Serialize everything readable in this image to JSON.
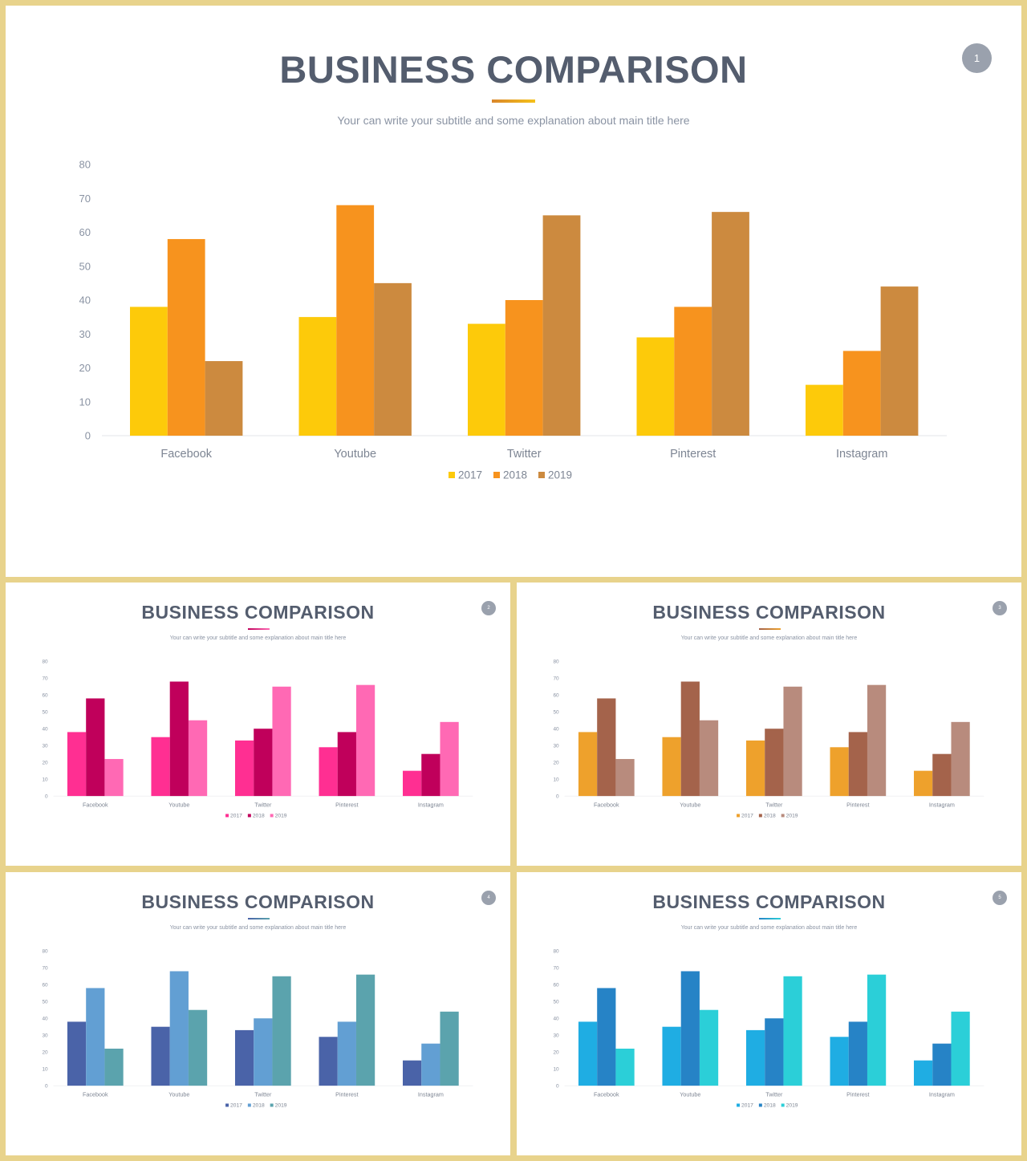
{
  "chart_data": [
    {
      "type": "bar",
      "title": "BUSINESS COMPARISON",
      "subtitle": "Your can write your subtitle and some explanation about main title here",
      "page_number": "1",
      "categories": [
        "Facebook",
        "Youtube",
        "Twitter",
        "Pinterest",
        "Instagram"
      ],
      "series": [
        {
          "name": "2017",
          "values": [
            38,
            35,
            33,
            29,
            15
          ]
        },
        {
          "name": "2018",
          "values": [
            58,
            68,
            40,
            38,
            25
          ]
        },
        {
          "name": "2019",
          "values": [
            22,
            45,
            65,
            66,
            44
          ]
        }
      ],
      "yticks": [
        "0",
        "10",
        "20",
        "30",
        "40",
        "50",
        "60",
        "70",
        "80"
      ],
      "ylim": [
        0,
        80
      ],
      "grid": false,
      "legend": "bottom",
      "colors": [
        "#fdca0a",
        "#f7931e",
        "#cc8a3f"
      ],
      "accent": [
        "#d9862a",
        "#f5c11a"
      ]
    },
    {
      "type": "bar",
      "title": "BUSINESS COMPARISON",
      "subtitle": "Your can write your subtitle and some explanation about main title here",
      "page_number": "2",
      "categories": [
        "Facebook",
        "Youtube",
        "Twitter",
        "Pinterest",
        "Instagram"
      ],
      "series": [
        {
          "name": "2017",
          "values": [
            38,
            35,
            33,
            29,
            15
          ]
        },
        {
          "name": "2018",
          "values": [
            58,
            68,
            40,
            38,
            25
          ]
        },
        {
          "name": "2019",
          "values": [
            22,
            45,
            65,
            66,
            44
          ]
        }
      ],
      "yticks": [
        "0",
        "10",
        "20",
        "30",
        "40",
        "50",
        "60",
        "70",
        "80"
      ],
      "ylim": [
        0,
        80
      ],
      "grid": false,
      "legend": "bottom",
      "colors": [
        "#ff2f92",
        "#c0005b",
        "#ff69b4"
      ],
      "accent": [
        "#c0005b",
        "#ff69b4"
      ]
    },
    {
      "type": "bar",
      "title": "BUSINESS COMPARISON",
      "subtitle": "Your can write your subtitle and some explanation about main title here",
      "page_number": "3",
      "categories": [
        "Facebook",
        "Youtube",
        "Twitter",
        "Pinterest",
        "Instagram"
      ],
      "series": [
        {
          "name": "2017",
          "values": [
            38,
            35,
            33,
            29,
            15
          ]
        },
        {
          "name": "2018",
          "values": [
            58,
            68,
            40,
            38,
            25
          ]
        },
        {
          "name": "2019",
          "values": [
            22,
            45,
            65,
            66,
            44
          ]
        }
      ],
      "yticks": [
        "0",
        "10",
        "20",
        "30",
        "40",
        "50",
        "60",
        "70",
        "80"
      ],
      "ylim": [
        0,
        80
      ],
      "grid": false,
      "legend": "bottom",
      "colors": [
        "#eea12c",
        "#a4634b",
        "#b88b7d"
      ],
      "accent": [
        "#a4634b",
        "#eea12c"
      ]
    },
    {
      "type": "bar",
      "title": "BUSINESS COMPARISON",
      "subtitle": "Your can write your subtitle and some explanation about main title here",
      "page_number": "4",
      "categories": [
        "Facebook",
        "Youtube",
        "Twitter",
        "Pinterest",
        "Instagram"
      ],
      "series": [
        {
          "name": "2017",
          "values": [
            38,
            35,
            33,
            29,
            15
          ]
        },
        {
          "name": "2018",
          "values": [
            58,
            68,
            40,
            38,
            25
          ]
        },
        {
          "name": "2019",
          "values": [
            22,
            45,
            65,
            66,
            44
          ]
        }
      ],
      "yticks": [
        "0",
        "10",
        "20",
        "30",
        "40",
        "50",
        "60",
        "70",
        "80"
      ],
      "ylim": [
        0,
        80
      ],
      "grid": false,
      "legend": "bottom",
      "colors": [
        "#4a63a8",
        "#629fd3",
        "#5ba3ad"
      ],
      "accent": [
        "#4a63a8",
        "#5ba3ad"
      ]
    },
    {
      "type": "bar",
      "title": "BUSINESS COMPARISON",
      "subtitle": "Your can write your subtitle and some explanation about main title here",
      "page_number": "5",
      "categories": [
        "Facebook",
        "Youtube",
        "Twitter",
        "Pinterest",
        "Instagram"
      ],
      "series": [
        {
          "name": "2017",
          "values": [
            38,
            35,
            33,
            29,
            15
          ]
        },
        {
          "name": "2018",
          "values": [
            58,
            68,
            40,
            38,
            25
          ]
        },
        {
          "name": "2019",
          "values": [
            22,
            45,
            65,
            66,
            44
          ]
        }
      ],
      "yticks": [
        "0",
        "10",
        "20",
        "30",
        "40",
        "50",
        "60",
        "70",
        "80"
      ],
      "ylim": [
        0,
        80
      ],
      "grid": false,
      "legend": "bottom",
      "colors": [
        "#1fade3",
        "#2683c6",
        "#2bcfd8"
      ],
      "accent": [
        "#2683c6",
        "#2bcfd8"
      ]
    }
  ]
}
